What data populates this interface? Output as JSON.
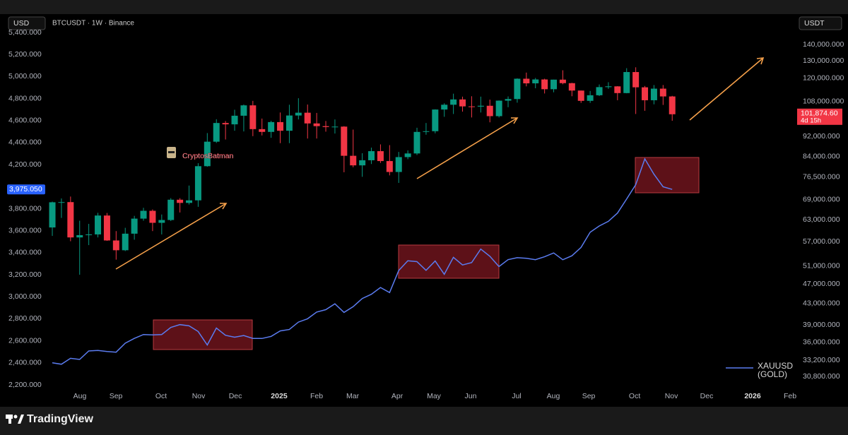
{
  "chart_data": {
    "type": "candlestick",
    "title": "BTCUSDT · 1W · Binance",
    "y_axis_label": "USD",
    "y2_axis_label": "USDT",
    "watermark": "CryptosBatman",
    "brand": "TradingView",
    "countdown": "4d 15h",
    "grid": false,
    "legend": "bottom-right",
    "xlim": [
      -0.7,
      81.47
    ],
    "xticks": [
      {
        "value": 3.02,
        "label": "Aug"
      },
      {
        "value": 6.98,
        "label": "Sep"
      },
      {
        "value": 11.94,
        "label": "Oct"
      },
      {
        "value": 16.05,
        "label": "Nov"
      },
      {
        "value": 20.08,
        "label": "Dec"
      },
      {
        "value": 24.88,
        "label": "2025"
      },
      {
        "value": 28.99,
        "label": "Feb"
      },
      {
        "value": 32.95,
        "label": "Mar"
      },
      {
        "value": 37.83,
        "label": "Apr"
      },
      {
        "value": 41.86,
        "label": "May"
      },
      {
        "value": 45.89,
        "label": "Jun"
      },
      {
        "value": 50.93,
        "label": "Jul"
      },
      {
        "value": 54.96,
        "label": "Aug"
      },
      {
        "value": 58.84,
        "label": "Sep"
      },
      {
        "value": 63.88,
        "label": "Oct"
      },
      {
        "value": 67.91,
        "label": "Nov"
      },
      {
        "value": 71.78,
        "label": "Dec"
      },
      {
        "value": 76.82,
        "label": "2026"
      },
      {
        "value": 80.93,
        "label": "Feb"
      }
    ],
    "ylim": [
      2155,
      5554
    ],
    "yticks": [
      {
        "value": 2200,
        "label": "2,200.000"
      },
      {
        "value": 2400,
        "label": "2,400.000"
      },
      {
        "value": 2600,
        "label": "2,600.000"
      },
      {
        "value": 2800,
        "label": "2,800.000"
      },
      {
        "value": 3000,
        "label": "3,000.000"
      },
      {
        "value": 3200,
        "label": "3,200.000"
      },
      {
        "value": 3400,
        "label": "3,400.000"
      },
      {
        "value": 3600,
        "label": "3,600.000"
      },
      {
        "value": 3800,
        "label": "3,800.000"
      },
      {
        "value": 4200,
        "label": "4,200.000"
      },
      {
        "value": 4400,
        "label": "4,400.000"
      },
      {
        "value": 4600,
        "label": "4,600.000"
      },
      {
        "value": 4800,
        "label": "4,800.000"
      },
      {
        "value": 5000,
        "label": "5,000.000"
      },
      {
        "value": 5200,
        "label": "5,200.000"
      },
      {
        "value": 5400,
        "label": "5,400.000"
      }
    ],
    "y2log": true,
    "y2lim": [
      29000,
      159800
    ],
    "y2ticks": [
      {
        "value": 30800,
        "label": "30,800.000"
      },
      {
        "value": 33200,
        "label": "33,200.000"
      },
      {
        "value": 36000,
        "label": "36,000.000"
      },
      {
        "value": 39000,
        "label": "39,000.000"
      },
      {
        "value": 43000,
        "label": "43,000.000"
      },
      {
        "value": 47000,
        "label": "47,000.000"
      },
      {
        "value": 51000,
        "label": "51,000.000"
      },
      {
        "value": 57000,
        "label": "57,000.000"
      },
      {
        "value": 63000,
        "label": "63,000.000"
      },
      {
        "value": 69000,
        "label": "69,000.000"
      },
      {
        "value": 76500,
        "label": "76,500.000"
      },
      {
        "value": 84000,
        "label": "84,000.000"
      },
      {
        "value": 92000,
        "label": "92,000.000"
      },
      {
        "value": 108000,
        "label": "108,000.000"
      },
      {
        "value": 120000,
        "label": "120,000.000"
      },
      {
        "value": 130000,
        "label": "130,000.000"
      },
      {
        "value": 140000,
        "label": "140,000.000"
      }
    ],
    "series": [
      {
        "type": "candlestick",
        "axis": "y2",
        "up_color": "#089981",
        "down_color": "#f23645",
        "open": [
          60800,
          68200,
          68250,
          58100,
          58700,
          58900,
          64200,
          57300,
          54800,
          59100,
          63300,
          65600,
          62100,
          62900,
          69000,
          68000,
          68800,
          80400,
          89900,
          97900,
          97300,
          101200,
          106100,
          95200,
          94000,
          98300,
          94500,
          101300,
          102600,
          97700,
          96500,
          96100,
          96300,
          84300,
          80700,
          82600,
          86100,
          82300,
          78300,
          83800,
          85200,
          94000,
          94300,
          104100,
          106400,
          109000,
          105600,
          105500,
          105900,
          101000,
          108400,
          109200,
          119800,
          117300,
          119400,
          114200,
          119300,
          117400,
          113500,
          108300,
          111100,
          115300,
          115700,
          112200,
          123500,
          115200,
          108600,
          114500,
          110500
        ],
        "high": [
          68400,
          69400,
          70000,
          62700,
          61800,
          65000,
          64950,
          59800,
          60700,
          64100,
          66500,
          66000,
          64500,
          69500,
          69500,
          73600,
          81500,
          93500,
          99600,
          98800,
          104000,
          106500,
          108300,
          99900,
          98900,
          102700,
          106400,
          109600,
          106500,
          102500,
          98800,
          99500,
          96500,
          95000,
          85300,
          87500,
          88800,
          88500,
          85800,
          86400,
          95800,
          97900,
          104200,
          107100,
          111900,
          110400,
          110600,
          110400,
          108900,
          108500,
          110500,
          120000,
          123200,
          120200,
          119800,
          119300,
          124500,
          117600,
          113500,
          113300,
          116700,
          117900,
          115800,
          125700,
          126200,
          115900,
          116400,
          116400,
          110800
        ],
        "low": [
          58500,
          63500,
          57100,
          49000,
          56100,
          58100,
          57200,
          52500,
          54600,
          57500,
          62700,
          59800,
          58900,
          62600,
          65100,
          67500,
          66800,
          80200,
          89400,
          90800,
          94500,
          94200,
          92200,
          92500,
          91500,
          89300,
          89300,
          99500,
          91200,
          91200,
          94100,
          93300,
          78200,
          80000,
          76600,
          81200,
          81600,
          77100,
          74500,
          83000,
          84600,
          92800,
          93400,
          100700,
          102000,
          103100,
          100400,
          102700,
          98200,
          100400,
          105200,
          107400,
          115700,
          114700,
          112000,
          112600,
          116800,
          110600,
          107300,
          107300,
          110700,
          114400,
          108600,
          112100,
          102000,
          103500,
          106600,
          106300,
          98900
        ],
        "close": [
          68200,
          68250,
          58100,
          58700,
          58900,
          64200,
          57300,
          54800,
          59100,
          63300,
          65600,
          62100,
          62900,
          69000,
          68000,
          68800,
          80400,
          89900,
          97900,
          97300,
          101200,
          106100,
          95200,
          94000,
          98300,
          94500,
          101300,
          102600,
          97700,
          96500,
          96100,
          96300,
          84300,
          80700,
          82600,
          86100,
          82300,
          78300,
          83800,
          85200,
          94000,
          94300,
          104100,
          106400,
          109000,
          105600,
          105500,
          105900,
          101000,
          108400,
          109200,
          119800,
          117300,
          119400,
          114200,
          119300,
          117400,
          113500,
          108300,
          111100,
          115300,
          115700,
          112200,
          123500,
          115200,
          108600,
          114500,
          110500,
          101874.6
        ],
        "value_labels": [
          null,
          null,
          null,
          null,
          null,
          null,
          null,
          null,
          null,
          null,
          null,
          null,
          null,
          null,
          null,
          null,
          null,
          null,
          null,
          null,
          null,
          null,
          null,
          null,
          null,
          null,
          null,
          null,
          null,
          null,
          null,
          null,
          null,
          null,
          null,
          null,
          null,
          null,
          null,
          null,
          null,
          null,
          null,
          null,
          null,
          null,
          null,
          null,
          null,
          null,
          null,
          null,
          null,
          null,
          null,
          null,
          null,
          null,
          null,
          null,
          null,
          null,
          null,
          null,
          null,
          null,
          null,
          null,
          "101,874.60"
        ]
      },
      {
        "type": "line",
        "name": "XAUUSD (GOLD)",
        "axis": "y",
        "color": "#5b7cf0",
        "values": [
          2400,
          2387,
          2441,
          2431,
          2508,
          2512,
          2503,
          2497,
          2578,
          2622,
          2657,
          2653,
          2657,
          2721,
          2747,
          2736,
          2685,
          2562,
          2716,
          2650,
          2633,
          2648,
          2622,
          2621,
          2640,
          2690,
          2703,
          2770,
          2800,
          2861,
          2883,
          2936,
          2858,
          2910,
          2984,
          3023,
          3084,
          3038,
          3238,
          3327,
          3319,
          3240,
          3325,
          3204,
          3358,
          3289,
          3310,
          3433,
          3368,
          3274,
          3337,
          3355,
          3350,
          3337,
          3363,
          3398,
          3336,
          3372,
          3448,
          3586,
          3643,
          3685,
          3760,
          3887,
          4018,
          4252,
          4113,
          3999,
          3975.05
        ],
        "value_labels": [
          null,
          null,
          null,
          null,
          null,
          null,
          null,
          null,
          null,
          null,
          null,
          null,
          null,
          null,
          null,
          null,
          null,
          null,
          null,
          null,
          null,
          null,
          null,
          null,
          null,
          null,
          null,
          null,
          null,
          null,
          null,
          null,
          null,
          null,
          null,
          null,
          null,
          null,
          null,
          null,
          null,
          null,
          null,
          null,
          null,
          null,
          null,
          null,
          null,
          null,
          null,
          null,
          null,
          null,
          null,
          null,
          null,
          null,
          null,
          null,
          null,
          null,
          null,
          null,
          null,
          null,
          null,
          null,
          "3,975.050"
        ]
      }
    ]
  }
}
